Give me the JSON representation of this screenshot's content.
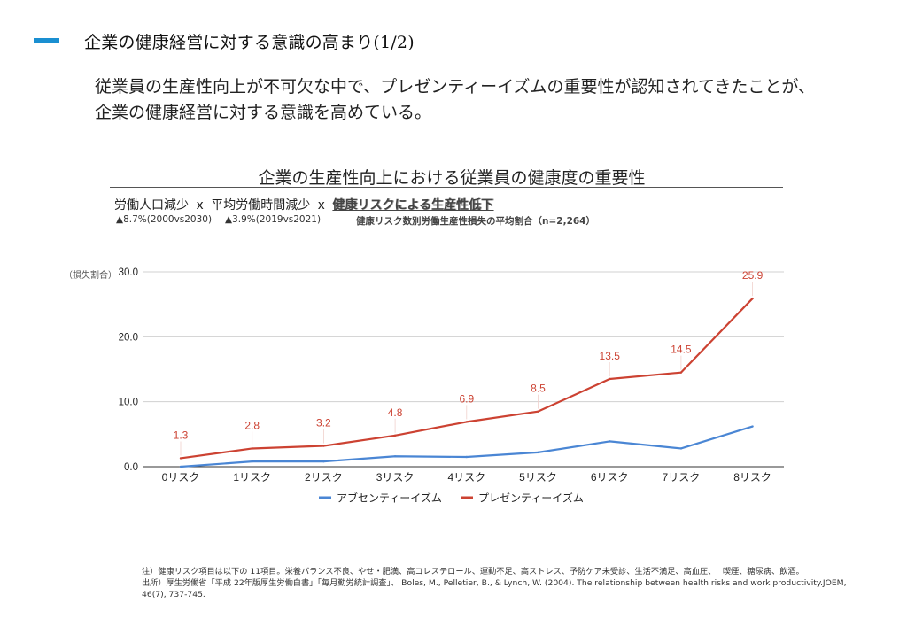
{
  "header": {
    "title": "企業の健康経営に対する意識の高まり(1/2)",
    "accent_color": "#1a8fd1"
  },
  "lead_text": "従業員の生産性向上が不可欠な中で、プレゼンティーイズムの重要性が認知されてきたことが、企業の健康経営に対する意識を高めている。",
  "chart_header": {
    "title": "企業の生産性向上における従業員の健康度の重要性",
    "factor1": "労働人口減少",
    "factor2": "平均労働時間減少",
    "factor3": "健康リスクによる生産性低下",
    "times": "x",
    "sub1": "▲8.7%(2000vs2030)",
    "sub2": "▲3.9%(2019vs2021)",
    "sub3": "健康リスク数別労働生産性損失の平均割合（n=2,264）"
  },
  "chart_data": {
    "type": "line",
    "categories": [
      "0リスク",
      "1リスク",
      "2リスク",
      "3リスク",
      "4リスク",
      "5リスク",
      "6リスク",
      "7リスク",
      "8リスク"
    ],
    "ylabel": "（損失割合）",
    "ylim": [
      0,
      30
    ],
    "yticks": [
      "0.0",
      "10.0",
      "20.0",
      "30.0"
    ],
    "grid": true,
    "legend_position": "bottom",
    "series": [
      {
        "name": "アブセンティーイズム",
        "color": "#4a86d4",
        "values": [
          0.0,
          0.8,
          0.8,
          1.6,
          1.5,
          2.2,
          3.9,
          2.8,
          6.2
        ],
        "labels": false
      },
      {
        "name": "プレゼンティーイズム",
        "color": "#cc4232",
        "values": [
          1.3,
          2.8,
          3.2,
          4.8,
          6.9,
          8.5,
          13.5,
          14.5,
          25.9
        ],
        "labels": true
      }
    ]
  },
  "notes": {
    "line1": "注）健康リスク項目は以下の 11項目。栄養バランス不良、やせ・肥満、高コレステロール、運動不足、高ストレス、予防ケア未受診、生活不満足、高血圧、　 喫煙、糖尿病、飲酒。",
    "line2": "出所）厚生労働省「平成 22年版厚生労働白書」「毎月勤労統計調査」、 Boles, M., Pelletier, B., & Lynch, W. (2004). The relationship between health risks and work productivity.JOEM, 46(7), 737-745."
  }
}
